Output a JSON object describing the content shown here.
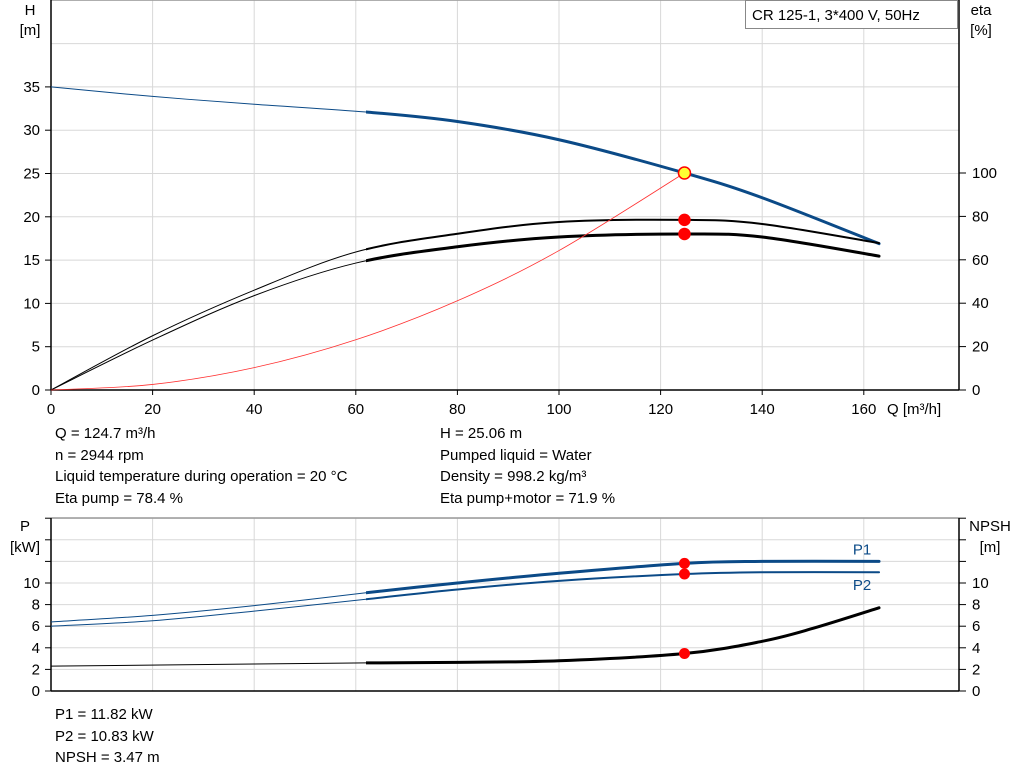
{
  "chart_data": [
    {
      "type": "line",
      "title": "CR 125-1, 3*400 V, 50Hz",
      "xlabel": "Q [m³/h]",
      "ylabel_left": [
        "H",
        "[m]"
      ],
      "ylabel_right": [
        "eta",
        "[%]"
      ],
      "xlim": [
        0,
        179
      ],
      "ylim_left": [
        0,
        45
      ],
      "ylim_right": [
        0,
        207
      ],
      "x_ticks": [
        "0",
        "20",
        "40",
        "60",
        "80",
        "100",
        "120",
        "140",
        "160"
      ],
      "y_left_ticks": [
        "0",
        "5",
        "10",
        "15",
        "20",
        "25",
        "30",
        "35"
      ],
      "y_right_ticks": [
        "0",
        "20",
        "40",
        "60",
        "80",
        "100"
      ],
      "grid": true,
      "operating_range_start_q": 62,
      "series": [
        {
          "key": "H",
          "axis": "left",
          "color": "#0b4a87",
          "x": [
            0,
            20,
            40,
            62,
            80,
            100,
            124.7,
            140,
            163
          ],
          "y": [
            35,
            33.9,
            33.0,
            32.1,
            31.0,
            28.9,
            25.06,
            22.2,
            16.9
          ]
        },
        {
          "key": "eta_pump",
          "axis": "right",
          "color": "#000000",
          "x": [
            0,
            20,
            40,
            60,
            80,
            100,
            124.7,
            140,
            163
          ],
          "y": [
            0,
            25,
            46,
            63.6,
            72,
            77.4,
            78.4,
            76.5,
            67.7
          ]
        },
        {
          "key": "eta_pump_motor",
          "axis": "right",
          "color": "#000000",
          "x": [
            0,
            20,
            40,
            60,
            80,
            100,
            124.7,
            140,
            163
          ],
          "y": [
            0,
            23,
            43.5,
            58.5,
            66,
            70.5,
            71.9,
            70.5,
            61.7
          ]
        },
        {
          "key": "system",
          "axis": "left",
          "color": "#ff3030",
          "x": [
            0,
            20,
            40,
            60,
            80,
            100,
            124.7
          ],
          "y": [
            0,
            0.64,
            2.58,
            5.8,
            10.3,
            16.1,
            25.06
          ]
        }
      ],
      "operating_points": [
        {
          "series": "H",
          "x": 124.7,
          "y": 25.06,
          "fill": "#ffff33",
          "stroke": "#ff0000"
        },
        {
          "series": "eta_pump",
          "x": 124.7,
          "y": 78.4,
          "fill": "#ff0000",
          "stroke": "#ff0000"
        },
        {
          "series": "eta_pump_motor",
          "x": 124.7,
          "y": 71.9,
          "fill": "#ff0000",
          "stroke": "#ff0000"
        }
      ]
    },
    {
      "type": "line",
      "ylabel_left": [
        "P",
        "[kW]"
      ],
      "ylabel_right": [
        "NPSH",
        "[m]"
      ],
      "xlim": [
        0,
        179
      ],
      "ylim": [
        0,
        16
      ],
      "y_left_ticks": [
        "0",
        "2",
        "4",
        "6",
        "8",
        "10"
      ],
      "y_right_ticks": [
        "0",
        "2",
        "4",
        "6",
        "8",
        "10"
      ],
      "grid": true,
      "operating_range_start_q": 62,
      "series": [
        {
          "name": "P1",
          "key": "P1",
          "color": "#0b4a87",
          "x": [
            0,
            20,
            40,
            62,
            80,
            100,
            124.7,
            140,
            163
          ],
          "y": [
            6.4,
            7.0,
            7.9,
            9.1,
            10.0,
            10.9,
            11.82,
            12.0,
            12.0
          ]
        },
        {
          "name": "P2",
          "key": "P2",
          "color": "#0b4a87",
          "x": [
            0,
            20,
            40,
            62,
            80,
            100,
            124.7,
            140,
            163
          ],
          "y": [
            6.0,
            6.5,
            7.4,
            8.5,
            9.4,
            10.2,
            10.83,
            11.0,
            11.0
          ]
        },
        {
          "key": "NPSH",
          "color": "#000000",
          "x": [
            0,
            40,
            62,
            80,
            100,
            124.7,
            140,
            150,
            163
          ],
          "y": [
            2.3,
            2.5,
            2.6,
            2.65,
            2.8,
            3.47,
            4.6,
            5.8,
            7.7
          ]
        }
      ],
      "operating_points": [
        {
          "series": "P1",
          "x": 124.7,
          "y": 11.82
        },
        {
          "series": "P2",
          "x": 124.7,
          "y": 10.83
        },
        {
          "series": "NPSH",
          "x": 124.7,
          "y": 3.47
        }
      ]
    }
  ],
  "info_top_left": [
    "Q = 124.7 m³/h",
    "n = 2944 rpm",
    "Liquid temperature during operation = 20 °C",
    "Eta pump = 78.4 %"
  ],
  "info_top_right": [
    "H = 25.06 m",
    "Pumped liquid = Water",
    "Density = 998.2 kg/m³",
    "Eta pump+motor = 71.9 %"
  ],
  "info_bottom": [
    "P1 = 11.82 kW",
    "P2 = 10.83 kW",
    "NPSH = 3.47 m"
  ]
}
